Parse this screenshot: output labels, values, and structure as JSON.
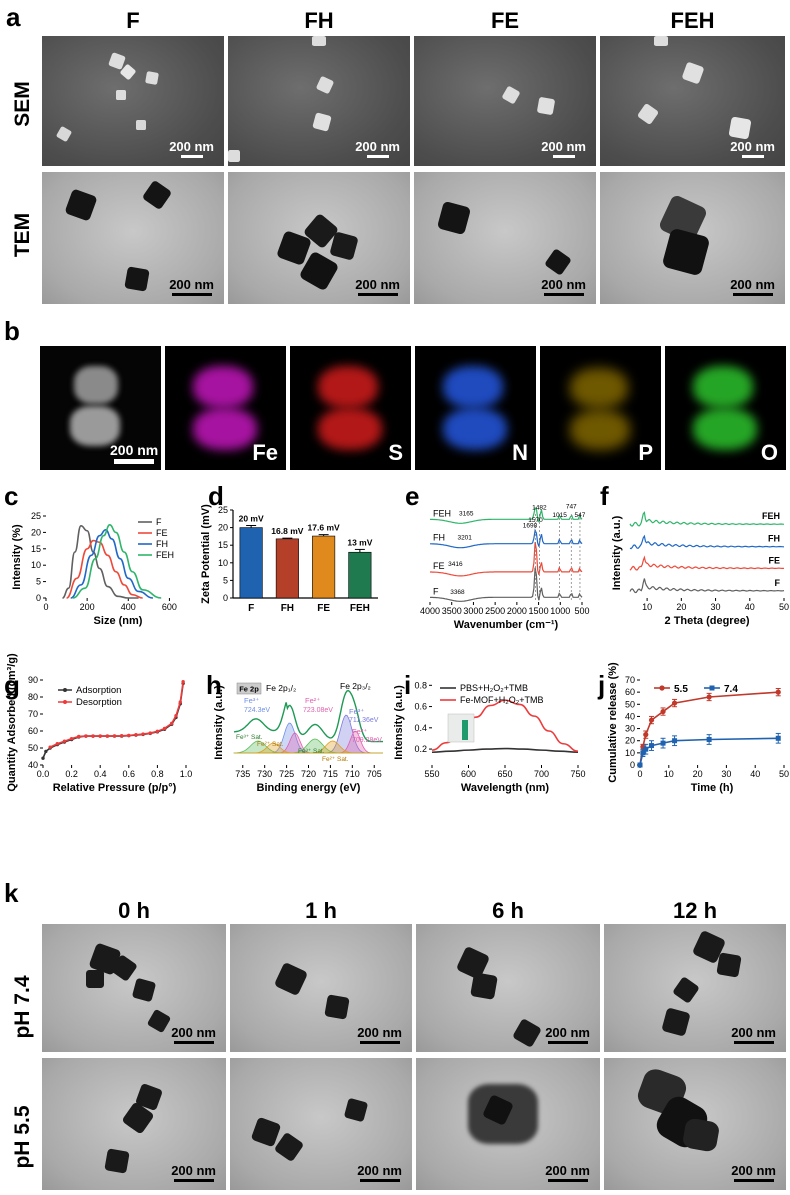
{
  "panels": {
    "a": "a",
    "b": "b",
    "c": "c",
    "d": "d",
    "e": "e",
    "f": "f",
    "g": "g",
    "h": "h",
    "i": "i",
    "j": "j",
    "k": "k"
  },
  "a": {
    "columns": [
      "F",
      "FH",
      "FE",
      "FEH"
    ],
    "rows": [
      "SEM",
      "TEM"
    ],
    "scale": "200 nm"
  },
  "b": {
    "scale": "200 nm",
    "elements": [
      "Fe",
      "S",
      "N",
      "P",
      "O"
    ],
    "element_colors": [
      "#e020d8",
      "#ee2020",
      "#2a64ff",
      "#e2b400",
      "#2fcf2f"
    ]
  },
  "k": {
    "columns": [
      "0 h",
      "1 h",
      "6 h",
      "12 h"
    ],
    "rows": [
      "pH 7.4",
      "pH 5.5"
    ],
    "scale": "200 nm"
  },
  "chart_data": [
    {
      "panel": "c",
      "type": "line",
      "xlabel": "Size (nm)",
      "ylabel": "Intensity (%)",
      "xlim": [
        0,
        700
      ],
      "ylim": [
        0,
        25
      ],
      "xticks": [
        "0",
        "200",
        "400",
        "600"
      ],
      "yticks": [
        "0",
        "5",
        "10",
        "15",
        "20",
        "25"
      ],
      "legend_position": "top-right",
      "series": [
        {
          "name": "F",
          "color": "#606060",
          "x": [
            80,
            110,
            140,
            170,
            200,
            230,
            260,
            300,
            350,
            400,
            450
          ],
          "y": [
            0,
            3,
            14,
            22,
            20.5,
            14,
            9,
            3.5,
            0.5,
            0,
            0
          ]
        },
        {
          "name": "FE",
          "color": "#ee4a3a",
          "x": [
            100,
            150,
            200,
            230,
            260,
            300,
            340,
            380,
            420,
            470
          ],
          "y": [
            0,
            6,
            15,
            17.5,
            17,
            13,
            8,
            4,
            1,
            0
          ]
        },
        {
          "name": "FH",
          "color": "#1f68c8",
          "x": [
            120,
            170,
            220,
            260,
            290,
            320,
            360,
            400,
            450,
            520
          ],
          "y": [
            0,
            4,
            13,
            19,
            20.8,
            18,
            12,
            6,
            2,
            0
          ]
        },
        {
          "name": "FEH",
          "color": "#2fb56a",
          "x": [
            130,
            190,
            240,
            280,
            310,
            340,
            380,
            420,
            470,
            560
          ],
          "y": [
            0,
            3,
            12,
            19,
            22.3,
            20,
            14,
            8,
            2.5,
            0
          ]
        }
      ]
    },
    {
      "panel": "d",
      "type": "bar",
      "ylabel": "Zeta Potential (mV)",
      "ylim": [
        0,
        25
      ],
      "yticks": [
        "0",
        "5",
        "10",
        "15",
        "20",
        "25"
      ],
      "categories": [
        "F",
        "FH",
        "FE",
        "FEH"
      ],
      "values": [
        20,
        16.8,
        17.6,
        13
      ],
      "errors": [
        0.6,
        0.2,
        0.4,
        0.8
      ],
      "data_labels": [
        "20 mV",
        "16.8 mV",
        "17.6 mV",
        "13 mV"
      ],
      "colors": [
        "#1f63b0",
        "#b5402a",
        "#e08a1e",
        "#1f7a4f"
      ]
    },
    {
      "panel": "e",
      "type": "line",
      "xlabel": "Wavenumber (cm⁻¹)",
      "xticks": [
        "4000",
        "3500",
        "3000",
        "2500",
        "2000",
        "1500",
        "1000",
        "500"
      ],
      "xlim": [
        4000,
        500
      ],
      "series": [
        {
          "name": "FEH",
          "color": "#2fb56a",
          "offset": 0.88
        },
        {
          "name": "FH",
          "color": "#1f68c8",
          "offset": 0.62
        },
        {
          "name": "FE",
          "color": "#ee4a3a",
          "offset": 0.32
        },
        {
          "name": "F",
          "color": "#606060",
          "offset": 0.05
        }
      ],
      "annotations": [
        "3165",
        "3201",
        "3416",
        "3368",
        "1698",
        "1570",
        "1482",
        "1015",
        "747",
        "547"
      ]
    },
    {
      "panel": "f",
      "type": "line",
      "xlabel": "2 Theta (degree)",
      "ylabel": "Intensity (a.u.)",
      "xlim": [
        5,
        50
      ],
      "xticks": [
        "10",
        "20",
        "30",
        "40",
        "50"
      ],
      "series": [
        {
          "name": "FEH",
          "color": "#2fb56a",
          "offset": 0.82
        },
        {
          "name": "FH",
          "color": "#1f68c8",
          "offset": 0.57
        },
        {
          "name": "FE",
          "color": "#ee4a3a",
          "offset": 0.33
        },
        {
          "name": "F",
          "color": "#606060",
          "offset": 0.08
        }
      ]
    },
    {
      "panel": "g",
      "type": "line",
      "xlabel": "Relative Pressure (p/p°)",
      "ylabel": "Quantity Adsorbed (cm³/g)",
      "xlim": [
        0,
        1
      ],
      "ylim": [
        40,
        90
      ],
      "xticks": [
        "0.0",
        "0.2",
        "0.4",
        "0.6",
        "0.8",
        "1.0"
      ],
      "yticks": [
        "40",
        "50",
        "60",
        "70",
        "80",
        "90"
      ],
      "legend_position": "top-left",
      "series": [
        {
          "name": "Adsorption",
          "color": "#333333",
          "x": [
            0.0,
            0.02,
            0.05,
            0.1,
            0.15,
            0.2,
            0.25,
            0.3,
            0.35,
            0.4,
            0.45,
            0.5,
            0.55,
            0.6,
            0.65,
            0.7,
            0.75,
            0.8,
            0.85,
            0.9,
            0.93,
            0.96,
            0.98
          ],
          "y": [
            44,
            48,
            50,
            52,
            53.5,
            55,
            56.5,
            57,
            57,
            57,
            57,
            57,
            57,
            57.3,
            57.6,
            58,
            58.6,
            59.5,
            61,
            64,
            68,
            76,
            88
          ]
        },
        {
          "name": "Desorption",
          "color": "#ee3a3a",
          "x": [
            0.98,
            0.96,
            0.93,
            0.9,
            0.85,
            0.8,
            0.75,
            0.7,
            0.65,
            0.6,
            0.55,
            0.5,
            0.45,
            0.4,
            0.35,
            0.3,
            0.25,
            0.2,
            0.15,
            0.1,
            0.05
          ],
          "y": [
            89,
            77,
            69,
            64.5,
            61.5,
            59.8,
            58.8,
            58.2,
            57.8,
            57.4,
            57.2,
            57.1,
            57,
            57,
            57,
            57,
            56.8,
            55.5,
            54,
            52.5,
            50.5
          ]
        }
      ]
    },
    {
      "panel": "h",
      "type": "line",
      "xlabel": "Binding energy (eV)",
      "ylabel": "Intensity (a.u.)",
      "xlim": [
        737,
        703
      ],
      "xticks": [
        "735",
        "730",
        "725",
        "720",
        "715",
        "710",
        "705"
      ],
      "tag": "Fe 2p",
      "peak_labels": [
        "Fe 2p₁/₂",
        "Fe 2p₃/₂",
        "Fe³⁺",
        "724.3eV",
        "Fe²⁺",
        "723.08eV",
        "Fe³⁺",
        "711.36eV",
        "Fe²⁺",
        "709.28eV",
        "Fe³⁺ Sat.",
        "Fe²⁺ Sat.",
        "Fe³⁺ Sat.",
        "Fe²⁺ Sat."
      ]
    },
    {
      "panel": "i",
      "type": "line",
      "xlabel": "Wavelength (nm)",
      "ylabel": "Intensity (a.u.)",
      "xlim": [
        550,
        750
      ],
      "ylim": [
        0.05,
        0.85
      ],
      "xticks": [
        "550",
        "600",
        "650",
        "700",
        "750"
      ],
      "yticks": [
        "0.2",
        "0.4",
        "0.6",
        "0.8"
      ],
      "legend_position": "top-right",
      "series": [
        {
          "name": "PBS+H₂O₂+TMB",
          "color": "#333333",
          "x": [
            550,
            575,
            600,
            625,
            650,
            675,
            700,
            725,
            750
          ],
          "y": [
            0.17,
            0.18,
            0.19,
            0.2,
            0.205,
            0.2,
            0.19,
            0.18,
            0.17
          ]
        },
        {
          "name": "Fe-MOF+H₂O₂+TMB",
          "color": "#ee3a3a",
          "x": [
            550,
            570,
            590,
            610,
            630,
            650,
            670,
            690,
            710,
            730,
            750
          ],
          "y": [
            0.19,
            0.26,
            0.37,
            0.5,
            0.61,
            0.66,
            0.62,
            0.51,
            0.37,
            0.25,
            0.18
          ]
        }
      ]
    },
    {
      "panel": "j",
      "type": "line",
      "xlabel": "Time (h)",
      "ylabel": "Cumulative release (%)",
      "xlim": [
        0,
        50
      ],
      "ylim": [
        0,
        70
      ],
      "xticks": [
        "0",
        "10",
        "20",
        "30",
        "40",
        "50"
      ],
      "yticks": [
        "0",
        "10",
        "20",
        "30",
        "40",
        "50",
        "60",
        "70"
      ],
      "legend_position": "top",
      "series": [
        {
          "name": "5.5",
          "color": "#c0392b",
          "x": [
            0,
            1,
            2,
            4,
            8,
            12,
            24,
            48
          ],
          "y": [
            0,
            15,
            25,
            37,
            44,
            51,
            56,
            60
          ],
          "err": [
            0,
            2,
            3,
            3,
            3,
            3,
            3,
            3
          ]
        },
        {
          "name": "7.4",
          "color": "#1f63b0",
          "x": [
            0,
            1,
            2,
            4,
            8,
            12,
            24,
            48
          ],
          "y": [
            0,
            10,
            13,
            16,
            18,
            20,
            21,
            22
          ],
          "err": [
            0,
            3,
            4,
            4,
            4,
            4,
            4,
            4
          ]
        }
      ]
    }
  ]
}
